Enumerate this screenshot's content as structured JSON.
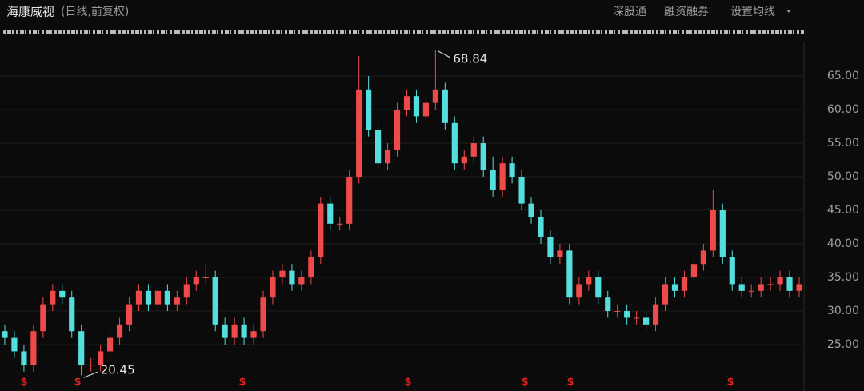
{
  "header": {
    "title": "海康威视",
    "subtitle": "(日线,前复权)",
    "buttons": [
      "深股通",
      "融资融券",
      "设置均线"
    ]
  },
  "chart_data": {
    "type": "candlestick",
    "up_color": "#ee4a4a",
    "down_color": "#54dede",
    "ylim": [
      19.17,
      70.12
    ],
    "yticks": [
      {
        "value": 25,
        "label": "25.00"
      },
      {
        "value": 30,
        "label": "30.00"
      },
      {
        "value": 35,
        "label": "35.00"
      },
      {
        "value": 40,
        "label": "40.00"
      },
      {
        "value": 45,
        "label": "45.00"
      },
      {
        "value": 50,
        "label": "50.00"
      },
      {
        "value": 55,
        "label": "55.00"
      },
      {
        "value": 60,
        "label": "60.00"
      },
      {
        "value": 65,
        "label": "65.00"
      }
    ],
    "event_label": "$",
    "open": [
      27,
      26,
      24,
      22,
      27,
      31,
      33,
      32,
      27,
      22,
      22,
      24,
      26,
      28,
      31,
      33,
      31,
      33,
      31,
      32,
      34,
      35,
      35,
      28,
      26,
      28,
      26,
      27,
      32,
      35,
      36,
      34,
      35,
      38,
      46,
      43,
      43,
      50,
      63,
      57,
      52,
      54,
      60,
      62,
      59,
      61,
      63,
      58,
      52,
      53,
      55,
      51,
      48,
      52,
      50,
      46,
      44,
      41,
      38,
      39,
      32,
      34,
      35,
      32,
      30,
      30,
      29,
      29,
      28,
      31,
      34,
      33,
      35,
      37,
      39,
      45,
      38,
      34,
      33,
      33,
      34,
      34,
      35,
      33
    ],
    "high": [
      28,
      27,
      25,
      28,
      32,
      34,
      34,
      33,
      28,
      23,
      25,
      27,
      29,
      32,
      34,
      34,
      34,
      34,
      33,
      35,
      36,
      37,
      36,
      29,
      29,
      29,
      28,
      33,
      36,
      37,
      37,
      36,
      39,
      47,
      47,
      44,
      51,
      68,
      65,
      58,
      55,
      61,
      63,
      63,
      62,
      68.84,
      64,
      59,
      54,
      56,
      56,
      53,
      53,
      53,
      51,
      47,
      45,
      42,
      40,
      40,
      35,
      36,
      36,
      33,
      31,
      31,
      30,
      30,
      32,
      35,
      35,
      36,
      38,
      40,
      48,
      46,
      39,
      35,
      34,
      35,
      35,
      36,
      36,
      35
    ],
    "low": [
      25,
      23,
      21,
      21,
      26,
      30,
      31,
      26,
      20.45,
      21,
      21,
      23,
      25,
      27,
      30,
      30,
      30,
      30,
      30,
      31,
      33,
      34,
      27,
      25,
      25,
      25,
      25,
      26,
      31,
      34,
      33,
      33,
      34,
      37,
      42,
      42,
      42,
      49,
      56,
      51,
      51,
      53,
      59,
      58,
      58,
      60,
      57,
      51,
      51,
      52,
      50,
      47,
      47,
      49,
      45,
      43,
      40,
      37,
      37,
      31,
      31,
      33,
      31,
      29,
      29,
      28,
      28,
      27,
      27,
      30,
      32,
      32,
      34,
      36,
      38,
      37,
      33,
      32,
      32,
      32,
      33,
      33,
      32,
      32
    ],
    "close": [
      26,
      24,
      22,
      27,
      31,
      33,
      32,
      27,
      22,
      22,
      24,
      26,
      28,
      31,
      33,
      31,
      33,
      31,
      32,
      34,
      35,
      35,
      28,
      26,
      28,
      26,
      27,
      32,
      35,
      36,
      34,
      35,
      38,
      46,
      43,
      43,
      50,
      63,
      57,
      52,
      54,
      60,
      62,
      59,
      61,
      63,
      58,
      52,
      53,
      55,
      51,
      48,
      52,
      50,
      46,
      44,
      41,
      38,
      39,
      32,
      34,
      35,
      32,
      30,
      30,
      29,
      29,
      28,
      31,
      34,
      33,
      35,
      37,
      39,
      45,
      38,
      34,
      33,
      33,
      34,
      34,
      35,
      33,
      34
    ]
  }
}
